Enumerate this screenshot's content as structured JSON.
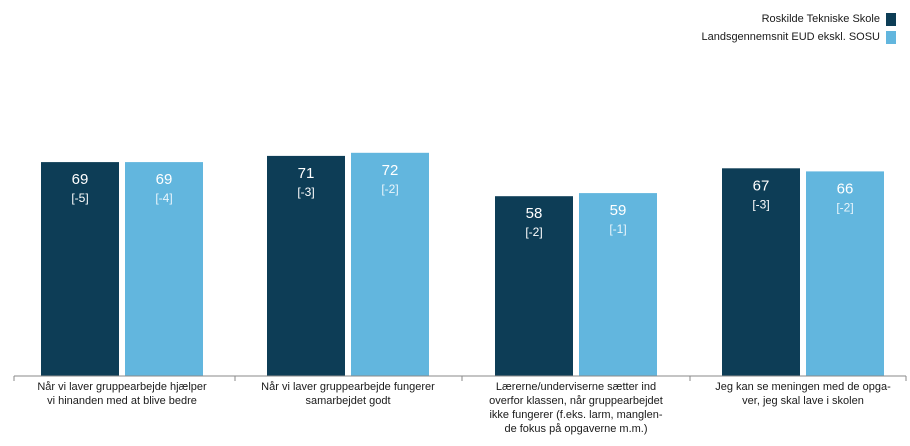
{
  "colors": {
    "series_primary": "#0d3d56",
    "series_secondary": "#62b6de",
    "axis": "#8a8a8a",
    "label_on_dark": "#ffffff",
    "diff_on_light": "#e9f5fb"
  },
  "legend": {
    "position": "top-right",
    "items": [
      {
        "label": "Roskilde Tekniske Skole"
      },
      {
        "label": "Landsgennemsnit EUD ekskl. SOSU"
      }
    ]
  },
  "chart_data": {
    "type": "bar",
    "title": "",
    "xlabel": "",
    "ylabel": "",
    "ylim": [
      0,
      100
    ],
    "grid": false,
    "categories": [
      "Når vi laver gruppearbejde hjælper\nvi hinanden med at blive bedre",
      "Når vi laver gruppearbejde fungerer\nsamarbejdet godt",
      "Lærerne/underviserne sætter ind\noverfor klassen, når gruppearbejdet\nikke fungerer (f.eks. larm, manglen-\nde fokus på opgaverne m.m.)",
      "Jeg kan se meningen med de opga-\nver, jeg skal lave i skolen"
    ],
    "series": [
      {
        "name": "Roskilde Tekniske Skole",
        "values": [
          69,
          71,
          58,
          67
        ],
        "diff_labels": [
          "[-5]",
          "[-3]",
          "[-2]",
          "[-3]"
        ]
      },
      {
        "name": "Landsgennemsnit EUD ekskl. SOSU",
        "values": [
          69,
          72,
          59,
          66
        ],
        "diff_labels": [
          "[-4]",
          "[-2]",
          "[-1]",
          "[-2]"
        ]
      }
    ]
  }
}
